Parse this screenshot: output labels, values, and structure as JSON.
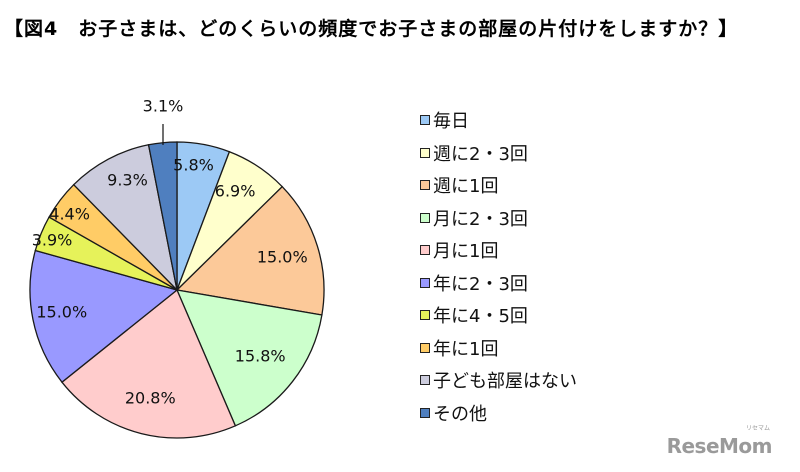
{
  "title": "【図4　お子さまは、どのくらいの頻度でお子さまの部屋の片付けをしますか？】",
  "chart_data": {
    "type": "pie",
    "title": "【図4　お子さまは、どのくらいの頻度でお子さまの部屋の片付けをしますか？】",
    "start_angle_deg": 0,
    "direction": "clockwise",
    "legend_position": "right",
    "categories": [
      "毎日",
      "週に2・3回",
      "週に1回",
      "月に2・3回",
      "月に1回",
      "年に2・3回",
      "年に4・5回",
      "年に1回",
      "子ども部屋はない",
      "その他"
    ],
    "values": [
      5.8,
      6.9,
      15.0,
      15.8,
      20.8,
      15.0,
      3.9,
      4.4,
      9.3,
      3.1
    ],
    "labels": [
      "5.8%",
      "6.9%",
      "15.0%",
      "15.8%",
      "20.8%",
      "15.0%",
      "3.9%",
      "4.4%",
      "9.3%",
      "3.1%"
    ],
    "colors": [
      "#9cc9f5",
      "#ffffcc",
      "#fcc999",
      "#ccffcc",
      "#ffcccc",
      "#9999ff",
      "#e6f25a",
      "#ffcc66",
      "#ccccdd",
      "#4f7fbf"
    ],
    "unit": "%"
  },
  "legend": {
    "items": [
      {
        "label": "毎日",
        "color": "#9cc9f5"
      },
      {
        "label": "週に2・3回",
        "color": "#ffffcc"
      },
      {
        "label": "週に1回",
        "color": "#fcc999"
      },
      {
        "label": "月に2・3回",
        "color": "#ccffcc"
      },
      {
        "label": "月に1回",
        "color": "#ffcccc"
      },
      {
        "label": "年に2・3回",
        "color": "#9999ff"
      },
      {
        "label": "年に4・5回",
        "color": "#e6f25a"
      },
      {
        "label": "年に1回",
        "color": "#ffcc66"
      },
      {
        "label": "子ども部屋はない",
        "color": "#ccccdd"
      },
      {
        "label": "その他",
        "color": "#4f7fbf"
      }
    ]
  },
  "watermark": {
    "text": "ReseMom",
    "kana": "リセマム"
  }
}
